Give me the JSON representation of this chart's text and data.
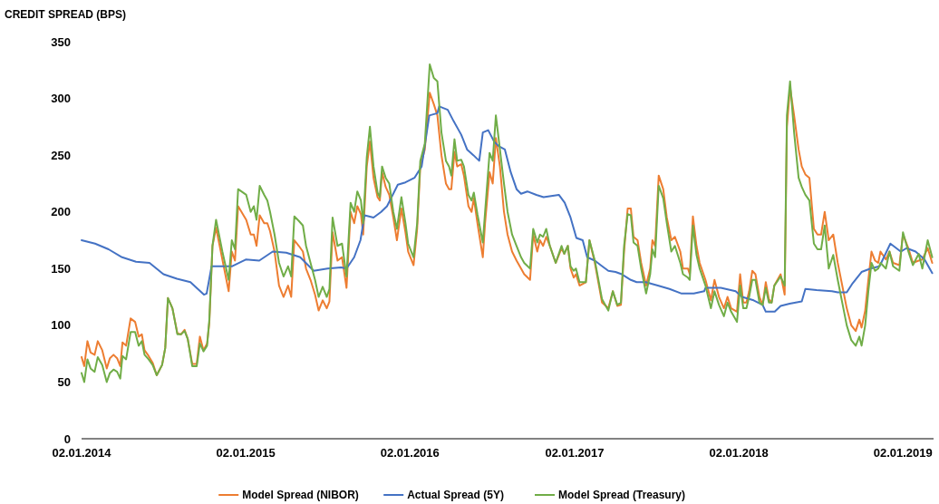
{
  "chart_data": {
    "type": "line",
    "ylabel": "CREDIT SPREAD (BPS)",
    "xlim": [
      "2014-01-02",
      "2019-03-11"
    ],
    "ylim": [
      0,
      350
    ],
    "xticks": [
      {
        "value": "2014-01-02",
        "label": "02.01.2014"
      },
      {
        "value": "2015-01-02",
        "label": "02.01.2015"
      },
      {
        "value": "2016-01-02",
        "label": "02.01.2016"
      },
      {
        "value": "2017-01-02",
        "label": "02.01.2017"
      },
      {
        "value": "2018-01-02",
        "label": "02.01.2018"
      },
      {
        "value": "2019-01-02",
        "label": "02.01.2019"
      }
    ],
    "yticks": [
      0,
      50,
      100,
      150,
      200,
      250,
      300,
      350
    ],
    "legend": "bottom",
    "x": [
      "2014-01-02",
      "2014-01-08",
      "2014-01-15",
      "2014-01-22",
      "2014-01-31",
      "2014-02-07",
      "2014-02-17",
      "2014-02-27",
      "2014-03-06",
      "2014-03-14",
      "2014-03-22",
      "2014-03-29",
      "2014-04-03",
      "2014-04-11",
      "2014-04-21",
      "2014-05-01",
      "2014-05-09",
      "2014-05-16",
      "2014-05-22",
      "2014-05-31",
      "2014-06-09",
      "2014-06-18",
      "2014-06-30",
      "2014-07-07",
      "2014-07-13",
      "2014-07-23",
      "2014-08-03",
      "2014-08-11",
      "2014-08-19",
      "2014-08-26",
      "2014-09-05",
      "2014-09-15",
      "2014-09-22",
      "2014-09-30",
      "2014-10-08",
      "2014-10-13",
      "2014-10-20",
      "2014-10-28",
      "2014-11-11",
      "2014-11-25",
      "2014-12-02",
      "2014-12-09",
      "2014-12-16",
      "2015-01-03",
      "2015-01-13",
      "2015-01-20",
      "2015-01-26",
      "2015-02-02",
      "2015-02-12",
      "2015-02-19",
      "2015-02-25",
      "2015-03-07",
      "2015-03-17",
      "2015-03-27",
      "2015-04-06",
      "2015-04-13",
      "2015-04-20",
      "2015-04-30",
      "2015-05-09",
      "2015-05-16",
      "2015-05-26",
      "2015-06-05",
      "2015-06-13",
      "2015-06-22",
      "2015-07-01",
      "2015-07-07",
      "2015-07-14",
      "2015-07-25",
      "2015-08-04",
      "2015-08-14",
      "2015-08-23",
      "2015-08-31",
      "2015-09-07",
      "2015-09-15",
      "2015-09-20",
      "2015-09-28",
      "2015-10-05",
      "2015-10-13",
      "2015-10-22",
      "2015-10-27",
      "2015-11-01",
      "2015-11-09",
      "2015-11-17",
      "2015-11-26",
      "2015-12-04",
      "2015-12-14",
      "2015-12-23",
      "2015-12-29",
      "2016-01-10",
      "2016-01-18",
      "2016-01-25",
      "2016-02-04",
      "2016-02-15",
      "2016-02-24",
      "2016-03-03",
      "2016-03-12",
      "2016-03-22",
      "2016-03-29",
      "2016-04-03",
      "2016-04-10",
      "2016-04-16",
      "2016-04-25",
      "2016-05-01",
      "2016-05-11",
      "2016-05-18",
      "2016-05-23",
      "2016-05-31",
      "2016-06-12",
      "2016-06-17",
      "2016-06-27",
      "2016-07-04",
      "2016-07-11",
      "2016-07-20",
      "2016-07-29",
      "2016-08-06",
      "2016-08-16",
      "2016-08-26",
      "2016-09-05",
      "2016-09-12",
      "2016-09-25",
      "2016-10-02",
      "2016-10-11",
      "2016-10-17",
      "2016-10-24",
      "2016-10-31",
      "2016-11-08",
      "2016-11-21",
      "2016-12-04",
      "2016-12-10",
      "2016-12-18",
      "2016-12-24",
      "2016-12-31",
      "2017-01-05",
      "2017-01-13",
      "2017-01-27",
      "2017-02-04",
      "2017-02-16",
      "2017-03-04",
      "2017-03-18",
      "2017-03-28",
      "2017-04-07",
      "2017-04-15",
      "2017-04-22",
      "2017-04-30",
      "2017-05-07",
      "2017-05-13",
      "2017-05-22",
      "2017-05-30",
      "2017-06-10",
      "2017-06-19",
      "2017-06-24",
      "2017-06-30",
      "2017-07-08",
      "2017-07-18",
      "2017-07-26",
      "2017-08-05",
      "2017-08-13",
      "2017-08-25",
      "2017-08-31",
      "2017-09-11",
      "2017-09-15",
      "2017-09-22",
      "2017-09-30",
      "2017-10-07",
      "2017-10-20",
      "2017-11-01",
      "2017-11-09",
      "2017-11-19",
      "2017-11-30",
      "2017-12-08",
      "2017-12-16",
      "2017-12-29",
      "2018-01-05",
      "2018-01-12",
      "2018-01-19",
      "2018-01-25",
      "2018-02-01",
      "2018-02-08",
      "2018-02-17",
      "2018-02-24",
      "2018-03-03",
      "2018-03-10",
      "2018-03-16",
      "2018-03-22",
      "2018-04-05",
      "2018-04-14",
      "2018-04-19",
      "2018-04-26",
      "2018-05-05",
      "2018-05-15",
      "2018-05-22",
      "2018-05-30",
      "2018-06-08",
      "2018-06-18",
      "2018-06-26",
      "2018-07-04",
      "2018-07-12",
      "2018-07-21",
      "2018-07-31",
      "2018-08-10",
      "2018-08-20",
      "2018-08-30",
      "2018-09-09",
      "2018-09-19",
      "2018-09-27",
      "2018-10-02",
      "2018-10-10",
      "2018-10-17",
      "2018-10-24",
      "2018-11-01",
      "2018-11-08",
      "2018-11-13",
      "2018-11-25",
      "2018-12-03",
      "2018-12-11",
      "2018-12-25",
      "2019-01-02",
      "2019-01-14",
      "2019-01-24",
      "2019-02-06",
      "2019-02-14",
      "2019-02-26",
      "2019-03-08"
    ],
    "series": [
      {
        "name": "Model Spread (NIBOR)",
        "color": "#ed7d31",
        "values": [
          72,
          64,
          86,
          76,
          74,
          86,
          78,
          62,
          71,
          74,
          71,
          64,
          85,
          82,
          106,
          103,
          90,
          92,
          78,
          73,
          67,
          56,
          65,
          80,
          124,
          115,
          93,
          92,
          96,
          88,
          66,
          66,
          90,
          78,
          84,
          102,
          170,
          186,
          158,
          130,
          165,
          157,
          205,
          193,
          180,
          180,
          170,
          197,
          190,
          190,
          183,
          165,
          135,
          125,
          135,
          125,
          175,
          170,
          165,
          150,
          140,
          127,
          113,
          122,
          115,
          121,
          182,
          157,
          160,
          133,
          200,
          190,
          205,
          198,
          180,
          240,
          262,
          230,
          213,
          210,
          235,
          222,
          215,
          195,
          175,
          203,
          182,
          165,
          153,
          185,
          240,
          255,
          305,
          295,
          285,
          250,
          225,
          220,
          220,
          253,
          240,
          242,
          232,
          205,
          200,
          212,
          190,
          160,
          190,
          235,
          225,
          265,
          240,
          200,
          180,
          165,
          157,
          150,
          145,
          140,
          180,
          165,
          175,
          170,
          178,
          170,
          155,
          168,
          163,
          170,
          150,
          142,
          145,
          135,
          138,
          175,
          155,
          120,
          115,
          130,
          117,
          118,
          165,
          203,
          203,
          178,
          175,
          155,
          135,
          150,
          175,
          170,
          232,
          220,
          195,
          175,
          178,
          165,
          150,
          150,
          145,
          196,
          170,
          155,
          140,
          122,
          140,
          125,
          115,
          125,
          115,
          112,
          145,
          120,
          120,
          130,
          148,
          145,
          125,
          118,
          138,
          123,
          120,
          135,
          145,
          127,
          275,
          310,
          285,
          255,
          240,
          233,
          230,
          185,
          180,
          180,
          200,
          175,
          180,
          155,
          135,
          115,
          100,
          95,
          105,
          98,
          113,
          140,
          165,
          157,
          155,
          165,
          158,
          165,
          155,
          153,
          180,
          168,
          155,
          157,
          158,
          168,
          155
        ]
      },
      {
        "name": "Actual Spread (5Y)",
        "color": "#4472c4",
        "x": [
          "2014-01-02",
          "2014-02-01",
          "2014-03-03",
          "2014-04-02",
          "2014-05-03",
          "2014-06-02",
          "2014-07-03",
          "2014-08-02",
          "2014-09-01",
          "2014-10-01",
          "2014-10-07",
          "2014-10-18",
          "2014-11-01",
          "2014-12-02",
          "2015-01-02",
          "2015-02-01",
          "2015-03-03",
          "2015-04-02",
          "2015-05-03",
          "2015-06-02",
          "2015-07-03",
          "2015-08-02",
          "2015-08-14",
          "2015-08-31",
          "2015-09-14",
          "2015-09-23",
          "2015-10-13",
          "2015-10-30",
          "2015-11-12",
          "2015-12-06",
          "2015-12-23",
          "2016-01-12",
          "2016-01-28",
          "2016-02-14",
          "2016-03-03",
          "2016-03-07",
          "2016-03-26",
          "2016-04-08",
          "2016-04-25",
          "2016-05-08",
          "2016-05-22",
          "2016-06-04",
          "2016-06-12",
          "2016-06-24",
          "2016-07-07",
          "2016-07-17",
          "2016-07-31",
          "2016-08-13",
          "2016-08-26",
          "2016-09-05",
          "2016-09-19",
          "2016-10-09",
          "2016-10-25",
          "2016-11-28",
          "2016-12-11",
          "2016-12-24",
          "2017-01-06",
          "2017-01-20",
          "2017-01-30",
          "2017-02-16",
          "2017-03-01",
          "2017-03-18",
          "2017-04-03",
          "2017-04-17",
          "2017-05-07",
          "2017-05-20",
          "2017-06-09",
          "2017-07-06",
          "2017-08-01",
          "2017-08-28",
          "2017-09-24",
          "2017-10-17",
          "2017-10-20",
          "2017-11-23",
          "2017-12-26",
          "2018-01-09",
          "2018-02-04",
          "2018-02-24",
          "2018-03-03",
          "2018-03-23",
          "2018-04-05",
          "2018-04-25",
          "2018-05-22",
          "2018-05-30",
          "2018-06-24",
          "2018-07-28",
          "2018-08-10",
          "2018-08-30",
          "2018-09-12",
          "2018-10-02",
          "2018-10-22",
          "2018-11-11",
          "2018-12-05",
          "2018-12-28",
          "2019-01-10",
          "2019-01-30",
          "2019-02-19",
          "2019-03-08"
        ],
        "values": [
          175,
          172,
          167,
          160,
          156,
          155,
          145,
          141,
          138,
          127,
          128,
          152,
          152,
          152,
          158,
          157,
          165,
          164,
          160,
          148,
          150,
          151,
          150,
          160,
          175,
          197,
          195,
          200,
          205,
          224,
          226,
          230,
          240,
          285,
          287,
          293,
          290,
          280,
          268,
          255,
          250,
          245,
          270,
          272,
          262,
          258,
          255,
          235,
          220,
          216,
          218,
          215,
          213,
          215,
          208,
          195,
          177,
          175,
          160,
          157,
          153,
          148,
          147,
          145,
          140,
          138,
          138,
          135,
          132,
          128,
          128,
          130,
          133,
          133,
          130,
          125,
          122,
          118,
          112,
          112,
          117,
          119,
          121,
          132,
          131,
          130,
          129,
          129,
          137,
          147,
          150,
          152,
          172,
          165,
          168,
          165,
          158,
          146
        ]
      },
      {
        "name": "Model Spread (Treasury)",
        "color": "#70ad47",
        "values": [
          58,
          50,
          70,
          62,
          59,
          72,
          65,
          50,
          58,
          61,
          59,
          53,
          73,
          70,
          94,
          94,
          82,
          86,
          74,
          70,
          65,
          56,
          65,
          80,
          124,
          115,
          92,
          92,
          95,
          88,
          64,
          64,
          84,
          77,
          82,
          105,
          170,
          193,
          165,
          140,
          175,
          167,
          220,
          215,
          200,
          205,
          193,
          223,
          215,
          210,
          200,
          180,
          155,
          143,
          152,
          143,
          196,
          192,
          188,
          170,
          155,
          140,
          125,
          134,
          125,
          132,
          195,
          170,
          172,
          143,
          208,
          200,
          218,
          210,
          190,
          248,
          275,
          240,
          217,
          213,
          240,
          230,
          225,
          200,
          185,
          213,
          190,
          172,
          160,
          190,
          245,
          260,
          330,
          318,
          315,
          270,
          245,
          240,
          232,
          264,
          245,
          246,
          240,
          215,
          210,
          217,
          198,
          173,
          200,
          252,
          245,
          285,
          255,
          225,
          200,
          180,
          170,
          160,
          155,
          150,
          185,
          173,
          180,
          178,
          185,
          170,
          155,
          170,
          163,
          170,
          152,
          148,
          150,
          138,
          138,
          175,
          157,
          123,
          113,
          130,
          118,
          120,
          170,
          198,
          197,
          173,
          170,
          150,
          128,
          145,
          167,
          160,
          223,
          212,
          190,
          165,
          170,
          155,
          145,
          142,
          140,
          188,
          162,
          150,
          135,
          115,
          130,
          118,
          108,
          120,
          112,
          103,
          135,
          115,
          115,
          125,
          140,
          140,
          120,
          118,
          133,
          120,
          120,
          135,
          143,
          135,
          285,
          315,
          270,
          230,
          222,
          215,
          210,
          172,
          167,
          167,
          188,
          150,
          162,
          140,
          120,
          100,
          87,
          82,
          90,
          82,
          100,
          130,
          155,
          148,
          150,
          155,
          150,
          165,
          152,
          148,
          182,
          165,
          153,
          163,
          150,
          175,
          160
        ]
      }
    ]
  }
}
